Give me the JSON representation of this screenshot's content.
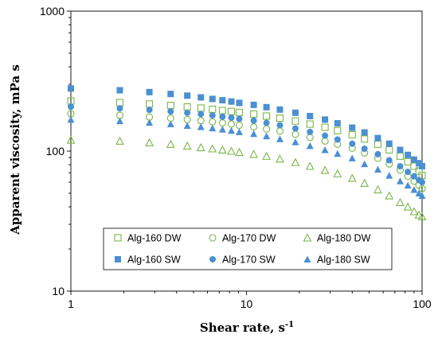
{
  "chart_data": {
    "type": "scatter",
    "xlabel": "Shear rate, s",
    "xlabel_sup": "-1",
    "ylabel": "Apparent viscosity, mPa s",
    "xscale": "log",
    "yscale": "log",
    "xlim": [
      1,
      100
    ],
    "ylim": [
      10,
      1000
    ],
    "xticks": [
      1,
      10,
      100
    ],
    "yticks": [
      10,
      100,
      1000
    ],
    "xtick_labels": [
      "1",
      "10",
      "100"
    ],
    "ytick_labels": [
      "10",
      "100",
      "1000"
    ],
    "grid": false,
    "legend_position": "lower-center",
    "x": [
      1,
      1.9,
      2.8,
      3.7,
      4.6,
      5.5,
      6.4,
      7.3,
      8.2,
      9.1,
      11,
      13,
      15.5,
      19,
      23,
      28,
      33,
      40,
      47,
      56,
      65,
      75,
      83,
      90,
      96,
      100
    ],
    "series": [
      {
        "name": "Alg-160 DW",
        "marker": "square-open",
        "color": "#7ab648",
        "values": [
          228,
          222,
          217,
          212,
          207,
          203,
          199,
          195,
          192,
          189,
          184,
          178,
          172,
          164,
          156,
          148,
          140,
          131,
          122,
          112,
          102,
          92,
          84,
          78,
          72,
          67
        ]
      },
      {
        "name": "Alg-170 DW",
        "marker": "circle-open",
        "color": "#7ab648",
        "values": [
          185,
          180,
          175,
          172,
          168,
          165,
          162,
          159,
          156,
          153,
          149,
          144,
          139,
          132,
          125,
          118,
          112,
          105,
          97,
          89,
          81,
          73,
          66,
          61,
          57,
          54
        ]
      },
      {
        "name": "Alg-180 DW",
        "marker": "triangle-open",
        "color": "#7ab648",
        "values": [
          120,
          118,
          115,
          112,
          109,
          106,
          104,
          102,
          100,
          98,
          95,
          92,
          88,
          83,
          78,
          73,
          69,
          64,
          59,
          53,
          48,
          43,
          40,
          37,
          35,
          34
        ]
      },
      {
        "name": "Alg-160 SW",
        "marker": "square-filled",
        "color": "#4a90d2",
        "values": [
          280,
          272,
          264,
          256,
          249,
          242,
          236,
          231,
          226,
          221,
          214,
          206,
          198,
          188,
          178,
          168,
          158,
          147,
          136,
          124,
          113,
          102,
          94,
          87,
          82,
          78
        ]
      },
      {
        "name": "Alg-170 SW",
        "marker": "circle-filled",
        "color": "#4a90d2",
        "values": [
          208,
          202,
          197,
          192,
          188,
          184,
          180,
          176,
          173,
          170,
          165,
          159,
          153,
          145,
          137,
          129,
          121,
          113,
          104,
          95,
          86,
          78,
          71,
          66,
          62,
          60
        ]
      },
      {
        "name": "Alg-180 SW",
        "marker": "triangle-filled",
        "color": "#4a90d2",
        "values": [
          168,
          164,
          160,
          156,
          152,
          149,
          146,
          143,
          140,
          137,
          133,
          128,
          122,
          116,
          109,
          102,
          96,
          89,
          81,
          74,
          67,
          61,
          57,
          53,
          50,
          48
        ]
      }
    ]
  }
}
